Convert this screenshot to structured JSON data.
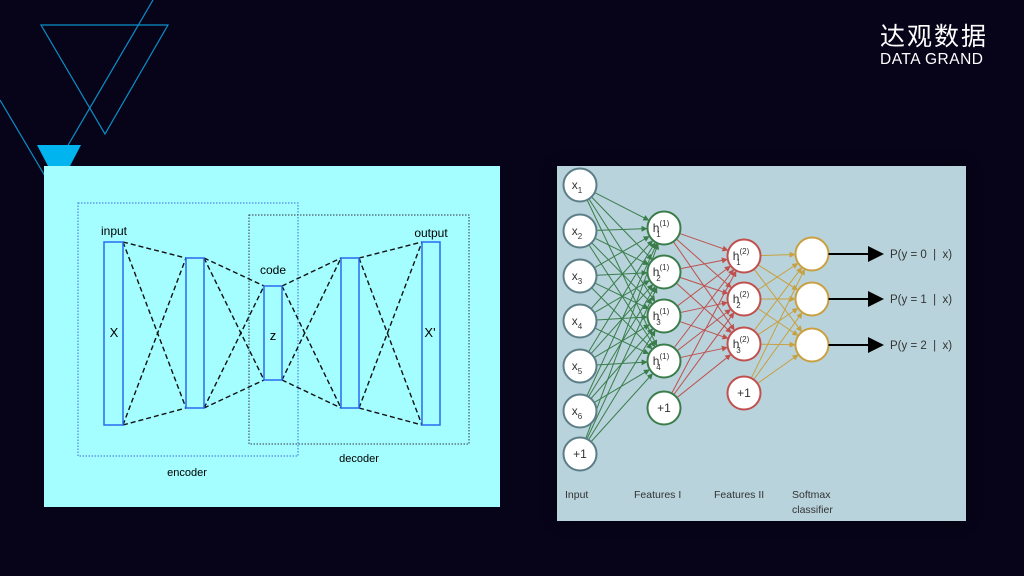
{
  "logo": {
    "chinese": "达观数据",
    "english": "DATA GRAND"
  },
  "colors": {
    "background": "#07041a",
    "accent": "#00b4f0",
    "left_panel": "#a4feff",
    "right_panel": "#b8d3dc",
    "layer1": "#3a7d4a",
    "layer2": "#c0504d",
    "layer3": "#c8a040"
  },
  "autoencoder": {
    "input_label": "input",
    "output_label": "output",
    "code_label": "code",
    "x_label": "X",
    "z_label": "z",
    "x_prime_label": "X'",
    "encoder_label": "encoder",
    "decoder_label": "decoder"
  },
  "network": {
    "input_nodes": [
      {
        "base": "x",
        "sub": "1"
      },
      {
        "base": "x",
        "sub": "2"
      },
      {
        "base": "x",
        "sub": "3"
      },
      {
        "base": "x",
        "sub": "4"
      },
      {
        "base": "x",
        "sub": "5"
      },
      {
        "base": "x",
        "sub": "6"
      },
      {
        "base": "+1",
        "sub": ""
      }
    ],
    "features1_nodes": [
      {
        "base": "h",
        "sub": "1",
        "sup": "(1)"
      },
      {
        "base": "h",
        "sub": "2",
        "sup": "(1)"
      },
      {
        "base": "h",
        "sub": "3",
        "sup": "(1)"
      },
      {
        "base": "h",
        "sub": "4",
        "sup": "(1)"
      },
      {
        "base": "+1",
        "sub": "",
        "sup": ""
      }
    ],
    "features2_nodes": [
      {
        "base": "h",
        "sub": "1",
        "sup": "(2)"
      },
      {
        "base": "h",
        "sub": "2",
        "sup": "(2)"
      },
      {
        "base": "h",
        "sub": "3",
        "sup": "(2)"
      },
      {
        "base": "+1",
        "sub": "",
        "sup": ""
      }
    ],
    "outputs": [
      "P(y = 0  |  x)",
      "P(y = 1  |  x)",
      "P(y = 2  |  x)"
    ],
    "layer_labels": {
      "input": "Input",
      "features1": "Features I",
      "features2": "Features II",
      "softmax_line1": "Softmax",
      "softmax_line2": "classifier"
    }
  }
}
